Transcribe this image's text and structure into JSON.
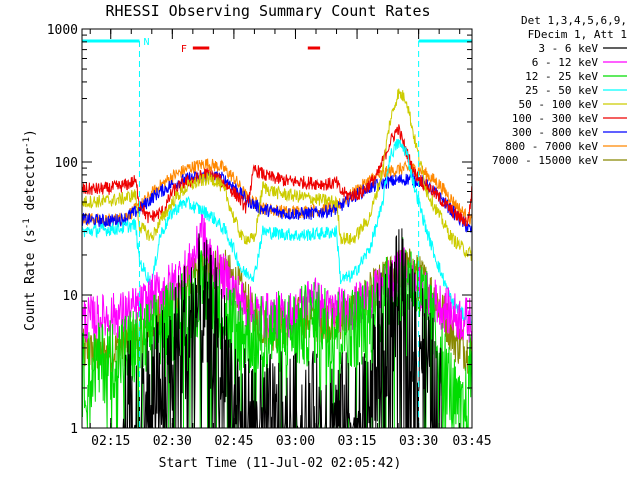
{
  "chart_data": {
    "type": "line",
    "title": "RHESSI Observing Summary Count Rates",
    "xlabel": "Start Time (11-Jul-02 02:05:42)",
    "ylabel": "Count Rate (s⁻¹ detector⁻¹)",
    "ylabel_parts": {
      "base": "Count Rate (s",
      "exp1": "-1",
      "mid": " detector",
      "exp2": "-1",
      "end": ")"
    },
    "yscale": "log",
    "ylim": [
      1,
      1000
    ],
    "xlim_min": [
      8,
      103
    ],
    "y_ticks": [
      {
        "value": 1,
        "label": "1"
      },
      {
        "value": 10,
        "label": "10"
      },
      {
        "value": 100,
        "label": "100"
      },
      {
        "value": 1000,
        "label": "1000"
      }
    ],
    "x_ticks": [
      {
        "min": 15,
        "label": "02:15"
      },
      {
        "min": 30,
        "label": "02:30"
      },
      {
        "min": 45,
        "label": "02:45"
      },
      {
        "min": 60,
        "label": "03:00"
      },
      {
        "min": 75,
        "label": "03:15"
      },
      {
        "min": 90,
        "label": "03:30"
      },
      {
        "min": 105,
        "label": "03:45"
      }
    ],
    "legend_header": [
      "Det 1,3,4,5,6,9,",
      "FDecim 1, Att 1"
    ],
    "legend": [
      {
        "label": "3 - 6 keV",
        "color": "#000000"
      },
      {
        "label": "6 - 12 keV",
        "color": "#ff00ff"
      },
      {
        "label": "12 - 25 keV",
        "color": "#00dd00"
      },
      {
        "label": "25 - 50 keV",
        "color": "#00ffff"
      },
      {
        "label": "50 - 100 keV",
        "color": "#cccc00"
      },
      {
        "label": "100 - 300 keV",
        "color": "#ee0000"
      },
      {
        "label": "300 - 800 keV",
        "color": "#0000ff"
      },
      {
        "label": "800 - 7000 keV",
        "color": "#ff8800"
      },
      {
        "label": "7000 - 15000 keV",
        "color": "#888800"
      }
    ],
    "annotations": {
      "night_flag": {
        "label": "N",
        "color": "#00ffff",
        "intervals": [
          [
            8,
            22
          ],
          [
            90,
            103
          ]
        ]
      },
      "flare_flag": {
        "label": "F",
        "color": "#ee0000",
        "intervals": [
          [
            35,
            39
          ],
          [
            63,
            66
          ]
        ]
      }
    },
    "series": [
      {
        "name": "7000 - 15000 keV",
        "color": "#888800",
        "points": [
          [
            8,
            3.8
          ],
          [
            14,
            3.6
          ],
          [
            18,
            4.2
          ],
          [
            22,
            5
          ],
          [
            26,
            7
          ],
          [
            30,
            9
          ],
          [
            34,
            13
          ],
          [
            38,
            15.5
          ],
          [
            42,
            15.8
          ],
          [
            45,
            13
          ],
          [
            48,
            9
          ],
          [
            50,
            6.5
          ],
          [
            54,
            5.5
          ],
          [
            58,
            6
          ],
          [
            62,
            7
          ],
          [
            66,
            6.3
          ],
          [
            70,
            6.5
          ],
          [
            74,
            7.5
          ],
          [
            78,
            10
          ],
          [
            82,
            13
          ],
          [
            85,
            15.5
          ],
          [
            88,
            15.5
          ],
          [
            91,
            13
          ],
          [
            95,
            8.5
          ],
          [
            99,
            4.5
          ],
          [
            103,
            3.6
          ]
        ]
      },
      {
        "name": "800 - 7000 keV",
        "color": "#ff8800",
        "points": [
          [
            8,
            38
          ],
          [
            14,
            36
          ],
          [
            18,
            38
          ],
          [
            22,
            46
          ],
          [
            26,
            62
          ],
          [
            30,
            78
          ],
          [
            34,
            90
          ],
          [
            38,
            97
          ],
          [
            42,
            92
          ],
          [
            45,
            76
          ],
          [
            48,
            55
          ],
          [
            52,
            45
          ],
          [
            58,
            42
          ],
          [
            64,
            43
          ],
          [
            70,
            46
          ],
          [
            74,
            58
          ],
          [
            78,
            73
          ],
          [
            82,
            83
          ],
          [
            85,
            88
          ],
          [
            88,
            90
          ],
          [
            91,
            85
          ],
          [
            95,
            68
          ],
          [
            99,
            48
          ],
          [
            102,
            38
          ],
          [
            103,
            37
          ]
        ]
      },
      {
        "name": "300 - 800 keV",
        "color": "#0000ff",
        "points": [
          [
            8,
            37
          ],
          [
            14,
            36
          ],
          [
            18,
            37
          ],
          [
            22,
            44
          ],
          [
            26,
            57
          ],
          [
            30,
            68
          ],
          [
            34,
            75
          ],
          [
            38,
            78
          ],
          [
            42,
            76
          ],
          [
            45,
            66
          ],
          [
            48,
            52
          ],
          [
            52,
            44
          ],
          [
            58,
            41
          ],
          [
            64,
            41
          ],
          [
            70,
            44
          ],
          [
            74,
            55
          ],
          [
            78,
            64
          ],
          [
            82,
            70
          ],
          [
            85,
            73
          ],
          [
            88,
            75
          ],
          [
            91,
            71
          ],
          [
            95,
            55
          ],
          [
            99,
            40
          ],
          [
            102,
            32
          ],
          [
            103,
            30
          ]
        ]
      },
      {
        "name": "100 - 300 keV",
        "color": "#ee0000",
        "points": [
          [
            8,
            62
          ],
          [
            14,
            63
          ],
          [
            18,
            66
          ],
          [
            21,
            72
          ],
          [
            22,
            50
          ],
          [
            24,
            38
          ],
          [
            26,
            40
          ],
          [
            28,
            43
          ],
          [
            30,
            60
          ],
          [
            33,
            70
          ],
          [
            36,
            75
          ],
          [
            38,
            82
          ],
          [
            40,
            78
          ],
          [
            43,
            68
          ],
          [
            46,
            55
          ],
          [
            48,
            45
          ],
          [
            50,
            88
          ],
          [
            53,
            78
          ],
          [
            58,
            72
          ],
          [
            63,
            70
          ],
          [
            68,
            68
          ],
          [
            70,
            70
          ],
          [
            71,
            60
          ],
          [
            73,
            56
          ],
          [
            76,
            58
          ],
          [
            80,
            80
          ],
          [
            83,
            140
          ],
          [
            85,
            180
          ],
          [
            87,
            120
          ],
          [
            89,
            82
          ],
          [
            91,
            70
          ],
          [
            93,
            62
          ],
          [
            96,
            50
          ],
          [
            99,
            40
          ],
          [
            102,
            35
          ],
          [
            103,
            62
          ]
        ]
      },
      {
        "name": "50 - 100 keV",
        "color": "#cccc00",
        "points": [
          [
            8,
            50
          ],
          [
            14,
            51
          ],
          [
            18,
            53
          ],
          [
            21,
            57
          ],
          [
            22,
            33
          ],
          [
            25,
            27
          ],
          [
            28,
            40
          ],
          [
            31,
            55
          ],
          [
            34,
            66
          ],
          [
            37,
            72
          ],
          [
            39,
            75
          ],
          [
            41,
            72
          ],
          [
            43,
            58
          ],
          [
            45,
            38
          ],
          [
            47,
            27
          ],
          [
            50,
            26
          ],
          [
            52,
            65
          ],
          [
            56,
            58
          ],
          [
            61,
            55
          ],
          [
            66,
            52
          ],
          [
            70,
            50
          ],
          [
            71,
            27
          ],
          [
            74,
            26
          ],
          [
            78,
            38
          ],
          [
            81,
            80
          ],
          [
            83,
            200
          ],
          [
            85,
            330
          ],
          [
            87,
            300
          ],
          [
            89,
            150
          ],
          [
            92,
            60
          ],
          [
            95,
            40
          ],
          [
            98,
            27
          ],
          [
            101,
            22
          ],
          [
            103,
            20
          ]
        ]
      },
      {
        "name": "25 - 50 keV",
        "color": "#00ffff",
        "points": [
          [
            8,
            30
          ],
          [
            14,
            31
          ],
          [
            18,
            32
          ],
          [
            21,
            34
          ],
          [
            22,
            18
          ],
          [
            25,
            12
          ],
          [
            27,
            28
          ],
          [
            30,
            42
          ],
          [
            33,
            50
          ],
          [
            36,
            45
          ],
          [
            38,
            42
          ],
          [
            40,
            38
          ],
          [
            43,
            30
          ],
          [
            45,
            22
          ],
          [
            47,
            15
          ],
          [
            50,
            14
          ],
          [
            52,
            30
          ],
          [
            56,
            29
          ],
          [
            61,
            28
          ],
          [
            66,
            29
          ],
          [
            70,
            30
          ],
          [
            71,
            13
          ],
          [
            74,
            14
          ],
          [
            78,
            22
          ],
          [
            81,
            45
          ],
          [
            83,
            110
          ],
          [
            85,
            140
          ],
          [
            87,
            120
          ],
          [
            89,
            65
          ],
          [
            92,
            30
          ],
          [
            95,
            16
          ],
          [
            98,
            9
          ],
          [
            101,
            7
          ],
          [
            103,
            6.5
          ]
        ]
      },
      {
        "name": "6 - 12 keV",
        "color": "#ff00ff",
        "points": [
          [
            8,
            6.5
          ],
          [
            14,
            6.8
          ],
          [
            18,
            7.2
          ],
          [
            22,
            8
          ],
          [
            26,
            10
          ],
          [
            30,
            12
          ],
          [
            34,
            16
          ],
          [
            36,
            22
          ],
          [
            37,
            35
          ],
          [
            38,
            24
          ],
          [
            40,
            17
          ],
          [
            44,
            12
          ],
          [
            48,
            8
          ],
          [
            52,
            7
          ],
          [
            56,
            7
          ],
          [
            60,
            7.2
          ],
          [
            63,
            9
          ],
          [
            64,
            11
          ],
          [
            65,
            9
          ],
          [
            68,
            7.5
          ],
          [
            72,
            7.8
          ],
          [
            76,
            8.5
          ],
          [
            80,
            10.5
          ],
          [
            84,
            13
          ],
          [
            86,
            16
          ],
          [
            88,
            14
          ],
          [
            90,
            11
          ],
          [
            94,
            9
          ],
          [
            98,
            7.2
          ],
          [
            101,
            6.5
          ],
          [
            103,
            6.5
          ]
        ]
      },
      {
        "name": "12 - 25 keV",
        "color": "#00dd00",
        "points": [
          [
            8,
            2.5
          ],
          [
            12,
            3
          ],
          [
            16,
            3.5
          ],
          [
            20,
            4
          ],
          [
            24,
            4.5
          ],
          [
            27,
            5.5
          ],
          [
            30,
            6.5
          ],
          [
            33,
            8
          ],
          [
            36,
            10
          ],
          [
            38,
            11
          ],
          [
            40,
            9.5
          ],
          [
            43,
            7
          ],
          [
            46,
            5.5
          ],
          [
            49,
            5
          ],
          [
            52,
            5
          ],
          [
            56,
            5.3
          ],
          [
            60,
            5.5
          ],
          [
            64,
            6
          ],
          [
            66,
            6.5
          ],
          [
            68,
            6
          ],
          [
            72,
            5.5
          ],
          [
            76,
            6
          ],
          [
            79,
            7.5
          ],
          [
            82,
            9.5
          ],
          [
            85,
            12
          ],
          [
            87,
            14
          ],
          [
            89,
            12
          ],
          [
            91,
            9
          ],
          [
            94,
            5
          ],
          [
            97,
            2.5
          ],
          [
            100,
            1.2
          ],
          [
            102,
            1.5
          ],
          [
            103,
            4
          ]
        ]
      },
      {
        "name": "3 - 6 keV",
        "color": "#000000",
        "points": [
          [
            18,
            1.2
          ],
          [
            21,
            1.5
          ],
          [
            24,
            1.8
          ],
          [
            27,
            2.5
          ],
          [
            30,
            3.5
          ],
          [
            33,
            5.5
          ],
          [
            35,
            7.5
          ],
          [
            37,
            8.5
          ],
          [
            39,
            7
          ],
          [
            41,
            5
          ],
          [
            43,
            3
          ],
          [
            45,
            1.8
          ],
          [
            47,
            1.2
          ],
          [
            49,
            1.05
          ],
          [
            76,
            1.1
          ],
          [
            78,
            2
          ],
          [
            80,
            3.5
          ],
          [
            82,
            5.5
          ],
          [
            84,
            8
          ],
          [
            86,
            9.5
          ],
          [
            88,
            8
          ],
          [
            90,
            5.5
          ],
          [
            92,
            3
          ],
          [
            94,
            1.8
          ],
          [
            96,
            1.1
          ]
        ]
      }
    ]
  }
}
